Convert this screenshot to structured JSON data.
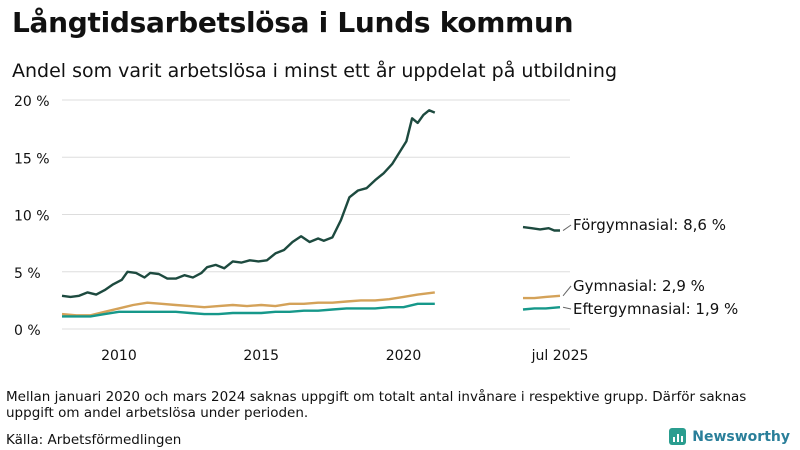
{
  "title": "Långtidsarbetslösa i Lunds kommun",
  "subtitle": "Andel som varit arbetslösa i minst ett år uppdelat på utbildning",
  "note": "Mellan januari 2020 och mars 2024 saknas uppgift om totalt antal invånare i respektive grupp. Därför saknas uppgift om andel arbetslösa under perioden.",
  "source": "Källa: Arbetsförmedlingen",
  "brand": "Newsworthy",
  "chart_data": {
    "type": "line",
    "x_ticks": [
      "2010",
      "2015",
      "2020",
      "jul 2025"
    ],
    "y_ticks": [
      "0 %",
      "5 %",
      "10 %",
      "15 %",
      "20 %"
    ],
    "ylim": [
      0,
      20
    ],
    "grid": true,
    "legend": "direct labels at right",
    "series": [
      {
        "name": "Förgymnasial",
        "end_label": "Förgymnasial: 8,6 %",
        "color": "#1d4a3f",
        "points": [
          [
            2008.0,
            2.9
          ],
          [
            2008.3,
            2.8
          ],
          [
            2008.6,
            2.9
          ],
          [
            2008.9,
            3.2
          ],
          [
            2009.2,
            3.0
          ],
          [
            2009.5,
            3.4
          ],
          [
            2009.8,
            3.9
          ],
          [
            2010.1,
            4.3
          ],
          [
            2010.3,
            5.0
          ],
          [
            2010.6,
            4.9
          ],
          [
            2010.9,
            4.5
          ],
          [
            2011.1,
            4.9
          ],
          [
            2011.4,
            4.8
          ],
          [
            2011.7,
            4.4
          ],
          [
            2012.0,
            4.4
          ],
          [
            2012.3,
            4.7
          ],
          [
            2012.6,
            4.5
          ],
          [
            2012.9,
            4.9
          ],
          [
            2013.1,
            5.4
          ],
          [
            2013.4,
            5.6
          ],
          [
            2013.7,
            5.3
          ],
          [
            2014.0,
            5.9
          ],
          [
            2014.3,
            5.8
          ],
          [
            2014.6,
            6.0
          ],
          [
            2014.9,
            5.9
          ],
          [
            2015.2,
            6.0
          ],
          [
            2015.5,
            6.6
          ],
          [
            2015.8,
            6.9
          ],
          [
            2016.1,
            7.6
          ],
          [
            2016.4,
            8.1
          ],
          [
            2016.7,
            7.6
          ],
          [
            2017.0,
            7.9
          ],
          [
            2017.2,
            7.7
          ],
          [
            2017.5,
            8.0
          ],
          [
            2017.8,
            9.5
          ],
          [
            2018.1,
            11.5
          ],
          [
            2018.4,
            12.1
          ],
          [
            2018.7,
            12.3
          ],
          [
            2019.0,
            13.0
          ],
          [
            2019.3,
            13.6
          ],
          [
            2019.6,
            14.4
          ],
          [
            2019.9,
            15.6
          ],
          [
            2020.1,
            16.4
          ],
          [
            2020.3,
            18.4
          ],
          [
            2020.5,
            18.0
          ],
          [
            2020.7,
            18.7
          ],
          [
            2020.9,
            19.1
          ],
          [
            2021.1,
            18.9
          ]
        ],
        "tail": [
          [
            2024.2,
            8.9
          ],
          [
            2024.5,
            8.8
          ],
          [
            2024.8,
            8.7
          ],
          [
            2025.1,
            8.8
          ],
          [
            2025.3,
            8.6
          ],
          [
            2025.5,
            8.6
          ]
        ]
      },
      {
        "name": "Gymnasial",
        "end_label": "Gymnasial: 2,9 %",
        "color": "#d4a259",
        "points": [
          [
            2008.0,
            1.3
          ],
          [
            2008.5,
            1.2
          ],
          [
            2009.0,
            1.2
          ],
          [
            2009.5,
            1.5
          ],
          [
            2010.0,
            1.8
          ],
          [
            2010.5,
            2.1
          ],
          [
            2011.0,
            2.3
          ],
          [
            2011.5,
            2.2
          ],
          [
            2012.0,
            2.1
          ],
          [
            2012.5,
            2.0
          ],
          [
            2013.0,
            1.9
          ],
          [
            2013.5,
            2.0
          ],
          [
            2014.0,
            2.1
          ],
          [
            2014.5,
            2.0
          ],
          [
            2015.0,
            2.1
          ],
          [
            2015.5,
            2.0
          ],
          [
            2016.0,
            2.2
          ],
          [
            2016.5,
            2.2
          ],
          [
            2017.0,
            2.3
          ],
          [
            2017.5,
            2.3
          ],
          [
            2018.0,
            2.4
          ],
          [
            2018.5,
            2.5
          ],
          [
            2019.0,
            2.5
          ],
          [
            2019.5,
            2.6
          ],
          [
            2020.0,
            2.8
          ],
          [
            2020.5,
            3.0
          ],
          [
            2021.1,
            3.2
          ]
        ],
        "tail": [
          [
            2024.2,
            2.7
          ],
          [
            2024.6,
            2.7
          ],
          [
            2025.0,
            2.8
          ],
          [
            2025.5,
            2.9
          ]
        ]
      },
      {
        "name": "Eftergymnasial",
        "end_label": "Eftergymnasial: 1,9 %",
        "color": "#16988a",
        "points": [
          [
            2008.0,
            1.1
          ],
          [
            2008.5,
            1.1
          ],
          [
            2009.0,
            1.1
          ],
          [
            2009.5,
            1.3
          ],
          [
            2010.0,
            1.5
          ],
          [
            2010.5,
            1.5
          ],
          [
            2011.0,
            1.5
          ],
          [
            2011.5,
            1.5
          ],
          [
            2012.0,
            1.5
          ],
          [
            2012.5,
            1.4
          ],
          [
            2013.0,
            1.3
          ],
          [
            2013.5,
            1.3
          ],
          [
            2014.0,
            1.4
          ],
          [
            2014.5,
            1.4
          ],
          [
            2015.0,
            1.4
          ],
          [
            2015.5,
            1.5
          ],
          [
            2016.0,
            1.5
          ],
          [
            2016.5,
            1.6
          ],
          [
            2017.0,
            1.6
          ],
          [
            2017.5,
            1.7
          ],
          [
            2018.0,
            1.8
          ],
          [
            2018.5,
            1.8
          ],
          [
            2019.0,
            1.8
          ],
          [
            2019.5,
            1.9
          ],
          [
            2020.0,
            1.9
          ],
          [
            2020.5,
            2.2
          ],
          [
            2021.1,
            2.2
          ]
        ],
        "tail": [
          [
            2024.2,
            1.7
          ],
          [
            2024.6,
            1.8
          ],
          [
            2025.0,
            1.8
          ],
          [
            2025.5,
            1.9
          ]
        ]
      }
    ]
  }
}
